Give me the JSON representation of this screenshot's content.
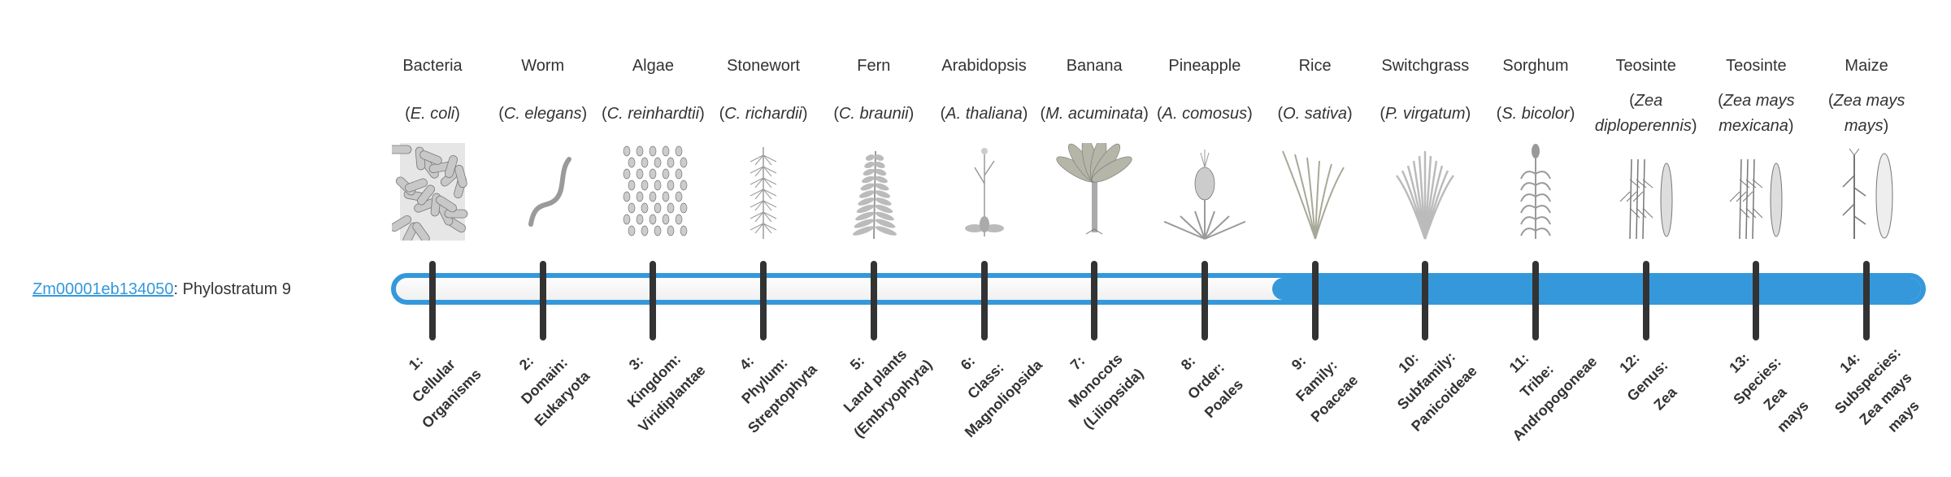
{
  "gene": {
    "id": "Zm00001eb134050",
    "suffix": ": Phylostratum 9",
    "phylostratum": 9,
    "total_strata": 14
  },
  "colors": {
    "accent": "#3498db",
    "tick": "#333333",
    "text": "#333333"
  },
  "organisms": [
    {
      "common": "Bacteria",
      "species": "E. coli",
      "icon": "bacteria"
    },
    {
      "common": "Worm",
      "species": "C. elegans",
      "icon": "worm"
    },
    {
      "common": "Algae",
      "species": "C. reinhardtii",
      "icon": "algae"
    },
    {
      "common": "Stonewort",
      "species": "C. richardii",
      "icon": "stonewort"
    },
    {
      "common": "Fern",
      "species": "C. braunii",
      "icon": "fern"
    },
    {
      "common": "Arabidopsis",
      "species": "A. thaliana",
      "icon": "arabidopsis"
    },
    {
      "common": "Banana",
      "species": "M. acuminata",
      "icon": "banana"
    },
    {
      "common": "Pineapple",
      "species": "A. comosus",
      "icon": "pineapple"
    },
    {
      "common": "Rice",
      "species": "O. sativa",
      "icon": "rice"
    },
    {
      "common": "Switchgrass",
      "species": "P. virgatum",
      "icon": "switchgrass"
    },
    {
      "common": "Sorghum",
      "species": "S. bicolor",
      "icon": "sorghum"
    },
    {
      "common": "Teosinte",
      "species": "Zea diploperennis",
      "icon": "teosinte"
    },
    {
      "common": "Teosinte",
      "species": "Zea mays mexicana",
      "icon": "teosinte"
    },
    {
      "common": "Maize",
      "species": "Zea mays mays",
      "icon": "maize"
    }
  ],
  "strata": [
    {
      "lines": [
        "1:",
        "Cellular",
        "Organisms"
      ]
    },
    {
      "lines": [
        "2:",
        "Domain:",
        "Eukaryota"
      ]
    },
    {
      "lines": [
        "3:",
        "Kingdom:",
        "Viridiplantae"
      ]
    },
    {
      "lines": [
        "4:",
        "Phylum:",
        "Streptophyta"
      ]
    },
    {
      "lines": [
        "5:",
        "Land plants",
        "(Embryophyta)"
      ]
    },
    {
      "lines": [
        "6:",
        "Class:",
        "Magnoliopsida"
      ]
    },
    {
      "lines": [
        "7:",
        "Monocots",
        "(Liliopsida)"
      ]
    },
    {
      "lines": [
        "8:",
        "Order:",
        "Poales"
      ]
    },
    {
      "lines": [
        "9:",
        "Family:",
        "Poaceae"
      ]
    },
    {
      "lines": [
        "10:",
        "Subfamily:",
        "Panicoideae"
      ]
    },
    {
      "lines": [
        "11:",
        "Tribe:",
        "Andropogoneae"
      ]
    },
    {
      "lines": [
        "12:",
        "Genus:",
        "Zea"
      ]
    },
    {
      "lines": [
        "13:",
        "Species:",
        "Zea",
        "mays"
      ]
    },
    {
      "lines": [
        "14:",
        "Subspecies:",
        "Zea mays",
        "mays"
      ]
    }
  ]
}
